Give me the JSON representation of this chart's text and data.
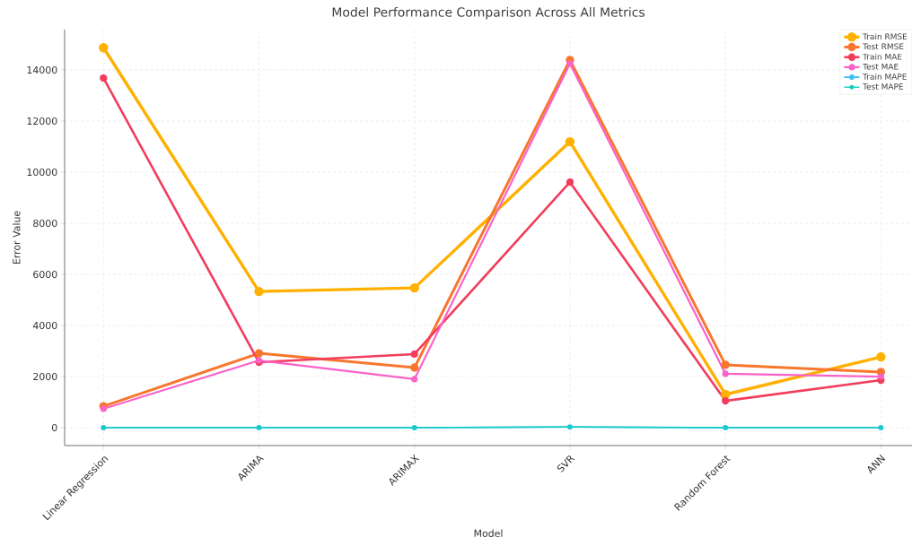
{
  "chart_data": {
    "type": "line",
    "title": "Model Performance Comparison Across All Metrics",
    "xlabel": "Model",
    "ylabel": "Error Value",
    "categories": [
      "Linear Regression",
      "ARIMA",
      "ARIMAX",
      "SVR",
      "Random Forest",
      "ANN"
    ],
    "series": [
      {
        "name": "Train RMSE",
        "color": "#ffb000",
        "values": [
          14870,
          5330,
          5470,
          11190,
          1300,
          2770
        ]
      },
      {
        "name": "Test RMSE",
        "color": "#f7772e",
        "values": [
          840,
          2910,
          2350,
          14390,
          2460,
          2180
        ]
      },
      {
        "name": "Train MAE",
        "color": "#f23d5c",
        "values": [
          13680,
          2560,
          2880,
          9610,
          1050,
          1860
        ]
      },
      {
        "name": "Test MAE",
        "color": "#fb62c8",
        "values": [
          740,
          2630,
          1900,
          14250,
          2110,
          2000
        ]
      },
      {
        "name": "Train MAPE",
        "color": "#3fbff5",
        "values": [
          0,
          0,
          0,
          30,
          0,
          0
        ]
      },
      {
        "name": "Test MAPE",
        "color": "#10cfc0",
        "values": [
          0,
          0,
          0,
          30,
          0,
          0
        ]
      }
    ],
    "ylim": [
      -700,
      15580
    ],
    "yticks": [
      0,
      2000,
      4000,
      6000,
      8000,
      10000,
      12000,
      14000
    ],
    "grid": true,
    "legend": "top right",
    "marker": "circle",
    "line_style": "solid"
  }
}
